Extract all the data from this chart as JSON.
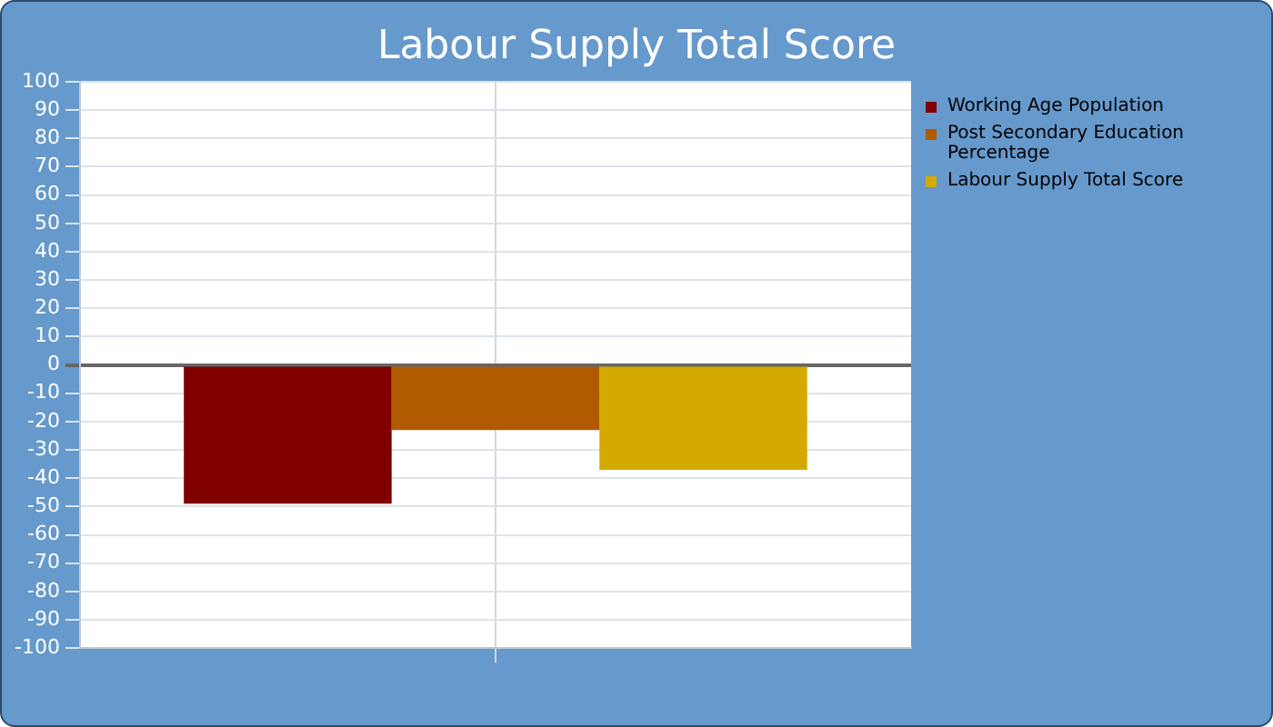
{
  "chart_data": {
    "type": "bar",
    "title": "Labour Supply Total Score",
    "categories": [
      null
    ],
    "series": [
      {
        "name": "Working Age Population",
        "color": "#800000",
        "values": [
          -49
        ]
      },
      {
        "name": "Post Secondary Education Percentage",
        "color": "#b05a00",
        "values": [
          -23
        ]
      },
      {
        "name": "Labour Supply Total Score",
        "color": "#d4aa00",
        "values": [
          -37
        ]
      }
    ],
    "ylim": [
      -100,
      100
    ],
    "yticks": [
      -100,
      -90,
      -80,
      -70,
      -60,
      -50,
      -40,
      -30,
      -20,
      -10,
      0,
      10,
      20,
      30,
      40,
      50,
      60,
      70,
      80,
      90,
      100
    ],
    "grid": true,
    "legend": "right"
  }
}
